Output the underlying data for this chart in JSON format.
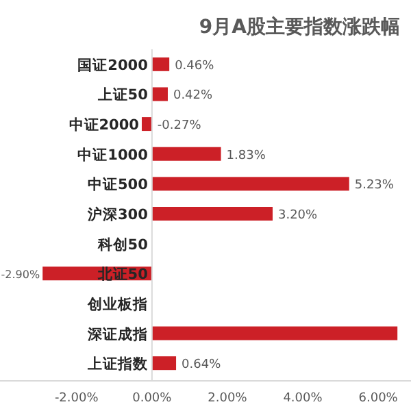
{
  "chart_data": {
    "type": "bar",
    "orientation": "horizontal",
    "title": "9月A股主要指数涨跌幅",
    "categories": [
      "国证2000",
      "上证50",
      "中证2000",
      "中证1000",
      "中证500",
      "沪深300",
      "科创50",
      "北证50",
      "创业板指",
      "深证成指",
      "上证指数"
    ],
    "values": [
      0.46,
      0.42,
      -0.27,
      1.83,
      5.23,
      3.2,
      null,
      -2.9,
      null,
      6.51,
      0.64
    ],
    "value_labels": [
      "0.46%",
      "0.42%",
      "-0.27%",
      "1.83%",
      "5.23%",
      "3.20%",
      null,
      "-2.90%",
      null,
      null,
      "0.64%"
    ],
    "color": "#cc2027",
    "xlim": [
      -4.03,
      6.87
    ],
    "xticks": [
      {
        "value": -2,
        "label": "-2.00%"
      },
      {
        "value": 0,
        "label": "0.00%"
      },
      {
        "value": 2,
        "label": "2.00%"
      },
      {
        "value": 4,
        "label": "4.00%"
      },
      {
        "value": 6,
        "label": "6.00%"
      }
    ]
  }
}
